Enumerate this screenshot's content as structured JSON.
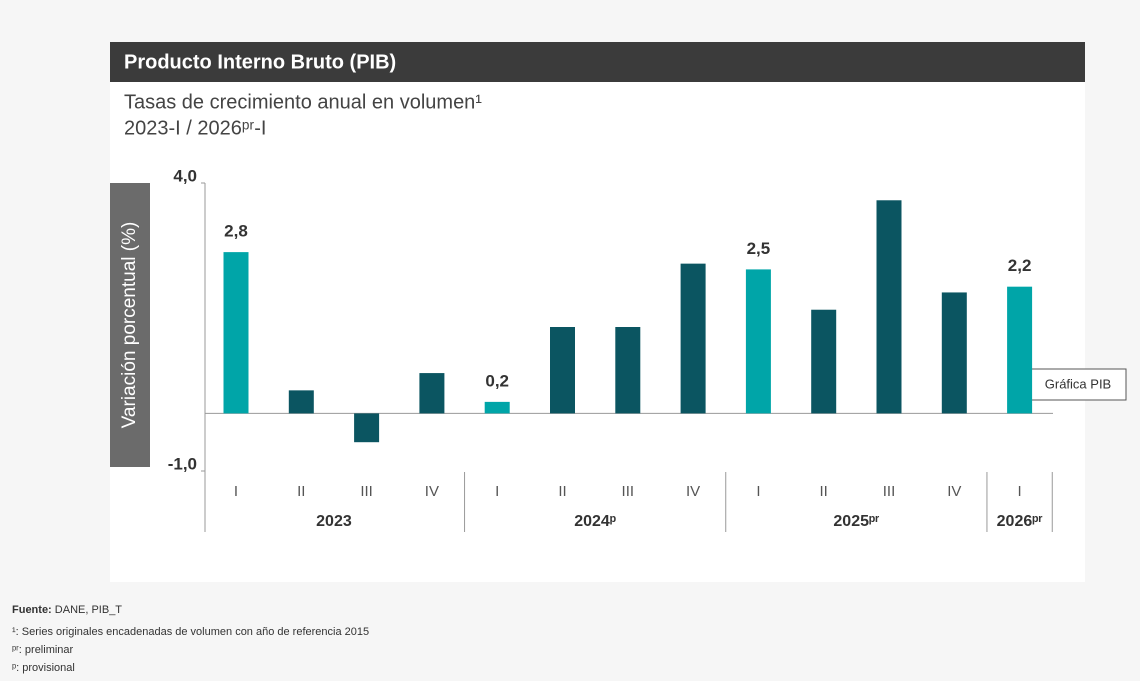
{
  "chart_data": {
    "type": "bar",
    "title": "Producto Interno Bruto (PIB)",
    "subtitle": [
      "Tasas de crecimiento anual en volumen¹",
      "2023-I / 2026ᵖʳ-I"
    ],
    "y_label": "Variación porcentual (%)",
    "groups": [
      {
        "label": "2023",
        "categories": [
          "I",
          "II",
          "III",
          "IV"
        ]
      },
      {
        "label": "2024ᵖ",
        "categories": [
          "I",
          "II",
          "III",
          "IV"
        ]
      },
      {
        "label": "2025ᵖʳ",
        "categories": [
          "I",
          "II",
          "III",
          "IV"
        ]
      },
      {
        "label": "2026ᵖʳ",
        "categories": [
          "I"
        ]
      }
    ],
    "values": [
      2.8,
      0.4,
      -0.5,
      0.7,
      0.2,
      1.5,
      1.5,
      2.6,
      2.5,
      1.8,
      3.7,
      2.1,
      2.2
    ],
    "value_labels": [
      "2,8",
      null,
      null,
      null,
      "0,2",
      null,
      null,
      null,
      "2,5",
      null,
      null,
      null,
      "2,2"
    ],
    "colors": [
      "#00a5a8",
      "#0b5561",
      "#0b5561",
      "#0b5561",
      "#00a5a8",
      "#0b5561",
      "#0b5561",
      "#0b5561",
      "#00a5a8",
      "#0b5561",
      "#0b5561",
      "#0b5561",
      "#00a5a8"
    ],
    "ylim": [
      -1,
      4
    ],
    "yticks": [
      {
        "value": 4,
        "label": "4,0"
      },
      {
        "value": -1,
        "label": "-1,0"
      }
    ]
  },
  "tooltip": "Gráfica PIB",
  "footer": {
    "source_label": "Fuente:",
    "source": " DANE, PIB_T",
    "notes": [
      "¹: Series originales encadenadas de volumen con año de referencia 2015",
      "ᵖʳ: preliminar",
      "ᵖ: provisional"
    ]
  }
}
